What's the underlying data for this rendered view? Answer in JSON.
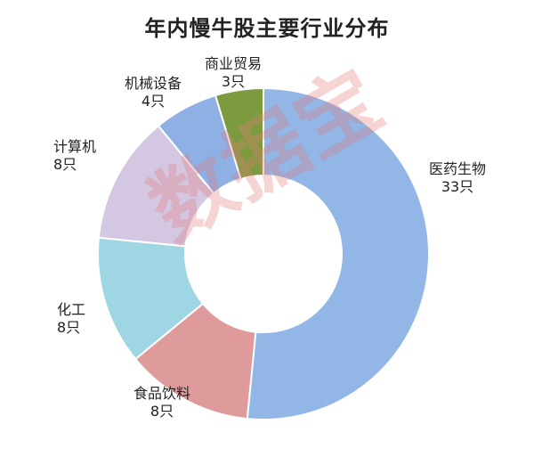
{
  "watermark": "数据宝",
  "chart_data": {
    "type": "pie",
    "title": "年内慢牛股主要行业分布",
    "donut": true,
    "start_angle_deg": 0,
    "direction": "clockwise",
    "slices": [
      {
        "name": "医药生物",
        "value": 33,
        "count_label": "33只",
        "color": "#92B6E6"
      },
      {
        "name": "食品饮料",
        "value": 8,
        "count_label": "8只",
        "color": "#DF9B9B"
      },
      {
        "name": "化工",
        "value": 8,
        "count_label": "8只",
        "color": "#9FD6E4"
      },
      {
        "name": "计算机",
        "value": 8,
        "count_label": "8只",
        "color": "#D3C7E2"
      },
      {
        "name": "机械设备",
        "value": 4,
        "count_label": "4只",
        "color": "#8FB0E4"
      },
      {
        "name": "商业贸易",
        "value": 3,
        "count_label": "3只",
        "color": "#7C9B3E"
      }
    ]
  }
}
